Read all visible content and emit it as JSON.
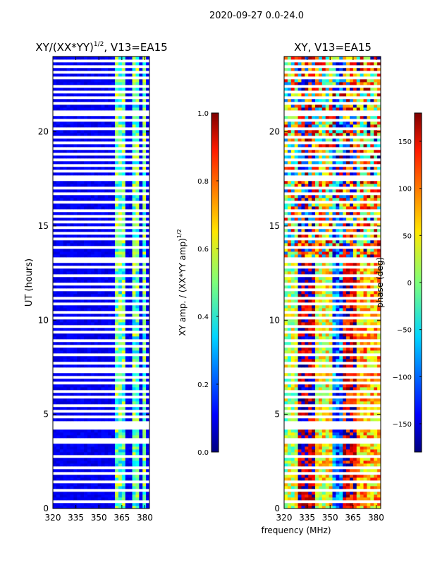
{
  "figure": {
    "suptitle": "2020-09-27 0.0-24.0",
    "shared_xlabel": "frequency (MHz)"
  },
  "chart_data": [
    {
      "type": "heatmap",
      "title": "XY/(XX*YY)^{1/2}, V13=EA15",
      "title_main": "XY/(XX*YY)",
      "title_sup": "1/2",
      "title_tail": ", V13=EA15",
      "xlabel": "",
      "ylabel": "UT (hours)",
      "xlim": [
        320,
        383
      ],
      "ylim": [
        0,
        24
      ],
      "xticks": [
        320,
        335,
        350,
        365,
        380
      ],
      "yticks": [
        0,
        5,
        10,
        15,
        20
      ],
      "colorbar": {
        "label_main": "XY amp. / (XX*YY amp)",
        "label_sup": "1/2",
        "vmin": 0.0,
        "vmax": 1.0,
        "ticks": [
          0.0,
          0.2,
          0.4,
          0.6,
          0.8,
          1.0
        ],
        "tick_labels": [
          "0.0",
          "0.2",
          "0.4",
          "0.6",
          "0.8",
          "1.0"
        ]
      },
      "rfi_band_mhz": [
        [
          360,
          364
        ],
        [
          365,
          368
        ],
        [
          369,
          370
        ],
        [
          371,
          374
        ],
        [
          375,
          377
        ],
        [
          378,
          380
        ]
      ],
      "flagged_ut_hours": [
        0.35,
        0.9,
        1.3,
        1.75,
        2.1,
        2.65,
        3.4,
        3.55,
        4.15,
        4.4,
        4.55,
        4.75,
        5.05,
        5.4,
        5.8,
        6.15,
        6.55,
        6.95,
        7.15,
        7.4,
        7.65,
        8.1,
        8.5,
        8.9,
        9.25,
        9.65,
        10.05,
        10.35,
        10.8,
        11.15,
        11.55,
        11.9,
        12.35,
        12.75,
        13.0,
        13.2,
        13.8,
        14.25,
        14.5,
        14.9,
        15.2,
        15.45,
        15.8,
        16.2,
        16.65,
        17.0,
        17.35,
        17.6,
        17.85,
        18.1,
        18.45,
        18.75,
        19.0,
        19.3,
        19.65,
        20.1,
        20.55,
        20.9,
        21.05,
        21.4,
        21.8,
        22.1,
        22.4,
        22.75,
        23.05,
        23.35,
        23.7
      ]
    },
    {
      "type": "heatmap",
      "title": "XY, V13=EA15",
      "xlabel": "frequency (MHz)",
      "ylabel": "",
      "xlim": [
        320,
        383
      ],
      "ylim": [
        0,
        24
      ],
      "xticks": [
        320,
        335,
        350,
        365,
        380
      ],
      "yticks": [
        0,
        5,
        10,
        15,
        20
      ],
      "colorbar": {
        "label": "phase (deg)",
        "vmin": -180,
        "vmax": 180,
        "ticks": [
          -150,
          -100,
          -50,
          0,
          50,
          100,
          150
        ],
        "tick_labels": [
          "−150",
          "−100",
          "−50",
          "0",
          "50",
          "100",
          "150"
        ]
      },
      "phase_bands": [
        {
          "from_mhz": 320,
          "to_mhz": 330,
          "phase_deg": 20
        },
        {
          "from_mhz": 330,
          "to_mhz": 340,
          "phase_deg": 175
        },
        {
          "from_mhz": 340,
          "to_mhz": 352,
          "phase_deg": 40
        },
        {
          "from_mhz": 352,
          "to_mhz": 358,
          "phase_deg": -100
        },
        {
          "from_mhz": 358,
          "to_mhz": 368,
          "phase_deg": 150
        },
        {
          "from_mhz": 368,
          "to_mhz": 383,
          "phase_deg": 70
        }
      ],
      "flagged_ut_hours": [
        0.35,
        0.9,
        1.3,
        1.75,
        2.1,
        2.65,
        3.4,
        3.55,
        4.15,
        4.4,
        4.55,
        4.75,
        5.05,
        5.4,
        5.8,
        6.15,
        6.55,
        6.95,
        7.15,
        7.4,
        7.65,
        8.1,
        8.5,
        8.9,
        9.25,
        9.65,
        10.05,
        10.35,
        10.8,
        11.15,
        11.55,
        11.9,
        12.35,
        12.75,
        13.0,
        13.2,
        13.8,
        14.25,
        14.5,
        14.9,
        15.2,
        15.45,
        15.8,
        16.2,
        16.65,
        17.0,
        17.35,
        17.6,
        17.85,
        18.1,
        18.45,
        18.75,
        19.0,
        19.3,
        19.65,
        20.1,
        20.55,
        20.9,
        21.05,
        21.4,
        21.8,
        22.1,
        22.4,
        22.75,
        23.05,
        23.35,
        23.7
      ]
    }
  ]
}
